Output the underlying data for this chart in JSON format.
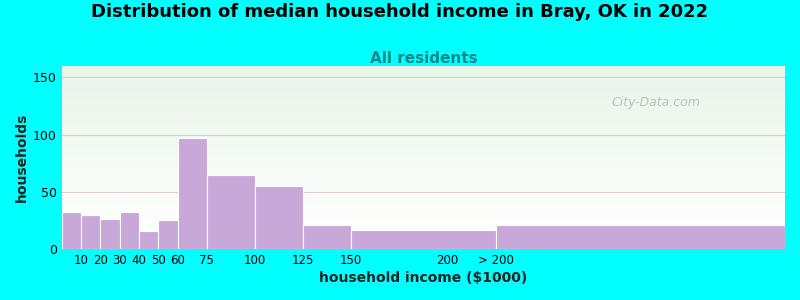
{
  "title": "Distribution of median household income in Bray, OK in 2022",
  "subtitle": "All residents",
  "xlabel": "household income ($1000)",
  "ylabel": "households",
  "background_color": "#00FFFF",
  "plot_bg_top": "#e8f5e8",
  "plot_bg_bottom": "#ffffff",
  "bar_color": "#C8A8D8",
  "title_fontsize": 13,
  "subtitle_fontsize": 11,
  "watermark": "City-Data.com",
  "ylim": [
    0,
    160
  ],
  "yticks": [
    0,
    50,
    100,
    150
  ],
  "bin_left": [
    0,
    10,
    20,
    30,
    40,
    50,
    60,
    75,
    100,
    125,
    150,
    225
  ],
  "bin_right": [
    10,
    20,
    30,
    40,
    50,
    60,
    75,
    100,
    125,
    150,
    225,
    375
  ],
  "values": [
    32,
    30,
    26,
    32,
    16,
    25,
    97,
    65,
    55,
    21,
    17,
    21
  ],
  "xtick_positions": [
    10,
    20,
    30,
    40,
    50,
    60,
    75,
    100,
    125,
    150,
    200,
    225
  ],
  "xtick_labels": [
    "10",
    "20",
    "30",
    "40",
    "50",
    "60",
    "75",
    "100",
    "125",
    "150",
    "200",
    "> 200"
  ]
}
